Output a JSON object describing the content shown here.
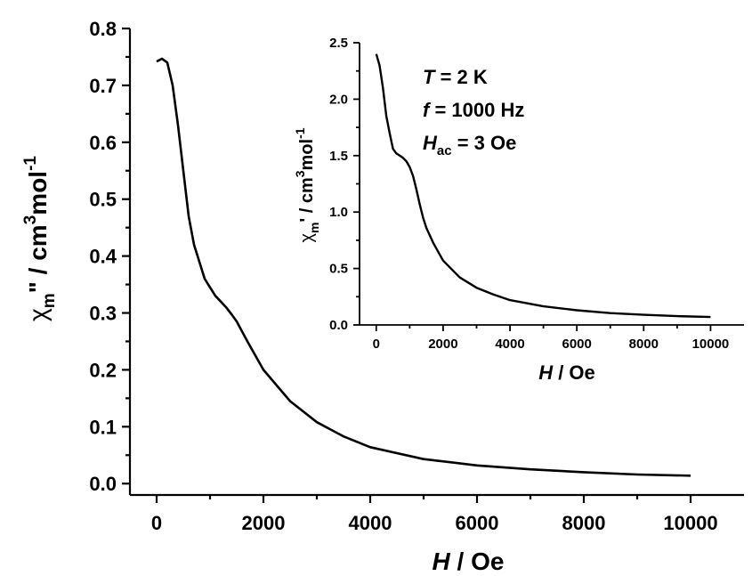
{
  "chart_data": [
    {
      "type": "line",
      "id": "main",
      "title": "",
      "xlabel": {
        "italic": "H",
        "rest": " / Oe"
      },
      "ylabel": {
        "chi": "χ",
        "sub_m": "m",
        "prime": "\" / cm",
        "sup3": "3",
        "mol": "mol",
        "supneg1": "-1"
      },
      "xlim": [
        -500,
        11000
      ],
      "ylim": [
        -0.02,
        0.8
      ],
      "xticks": [
        0,
        2000,
        4000,
        6000,
        8000,
        10000
      ],
      "xtick_labels": [
        "0",
        "2000",
        "4000",
        "6000",
        "8000",
        "10000"
      ],
      "yticks": [
        0.0,
        0.1,
        0.2,
        0.3,
        0.4,
        0.5,
        0.6,
        0.7,
        0.8
      ],
      "ytick_labels": [
        "0.0",
        "0.1",
        "0.2",
        "0.3",
        "0.4",
        "0.5",
        "0.6",
        "0.7",
        "0.8"
      ],
      "series": [
        {
          "x": [
            0,
            100,
            200,
            300,
            400,
            500,
            600,
            700,
            800,
            900,
            1000,
            1100,
            1200,
            1300,
            1400,
            1500,
            1700,
            2000,
            2500,
            3000,
            3500,
            4000,
            5000,
            6000,
            7000,
            8000,
            9000,
            10000
          ],
          "y": [
            0.742,
            0.747,
            0.74,
            0.7,
            0.63,
            0.55,
            0.47,
            0.42,
            0.39,
            0.36,
            0.345,
            0.33,
            0.32,
            0.31,
            0.298,
            0.285,
            0.25,
            0.2,
            0.145,
            0.108,
            0.083,
            0.064,
            0.043,
            0.032,
            0.025,
            0.02,
            0.016,
            0.014
          ]
        }
      ]
    },
    {
      "type": "line",
      "id": "inset",
      "title": "",
      "xlabel": {
        "italic": "H",
        "rest": " / Oe"
      },
      "ylabel": {
        "chi": "χ",
        "sub_m": "m",
        "prime": "' / cm",
        "sup3": "3",
        "mol": "mol",
        "supneg1": "-1"
      },
      "xlim": [
        -500,
        11000
      ],
      "ylim": [
        0,
        2.5
      ],
      "xticks": [
        0,
        2000,
        4000,
        6000,
        8000,
        10000
      ],
      "xtick_labels": [
        "0",
        "2000",
        "4000",
        "6000",
        "8000",
        "10000"
      ],
      "yticks": [
        0.0,
        0.5,
        1.0,
        1.5,
        2.0,
        2.5
      ],
      "ytick_labels": [
        "0.0",
        "0.5",
        "1.0",
        "1.5",
        "2.0",
        "2.5"
      ],
      "series": [
        {
          "x": [
            0,
            100,
            200,
            300,
            400,
            500,
            600,
            700,
            800,
            900,
            1000,
            1100,
            1200,
            1300,
            1400,
            1500,
            1700,
            2000,
            2500,
            3000,
            3500,
            4000,
            5000,
            6000,
            7000,
            8000,
            9000,
            10000
          ],
          "y": [
            2.4,
            2.3,
            2.1,
            1.85,
            1.7,
            1.56,
            1.52,
            1.5,
            1.48,
            1.45,
            1.4,
            1.32,
            1.2,
            1.07,
            0.95,
            0.86,
            0.73,
            0.57,
            0.42,
            0.33,
            0.27,
            0.22,
            0.165,
            0.13,
            0.105,
            0.09,
            0.078,
            0.07
          ]
        }
      ]
    }
  ],
  "annotations": {
    "temperature": {
      "symbol": "T",
      "value": " = 2 K"
    },
    "frequency": {
      "symbol": "f",
      "value": " = 1000 Hz"
    },
    "field": {
      "symbol": "H",
      "sub": "ac",
      "value": " = 3 Oe"
    }
  }
}
